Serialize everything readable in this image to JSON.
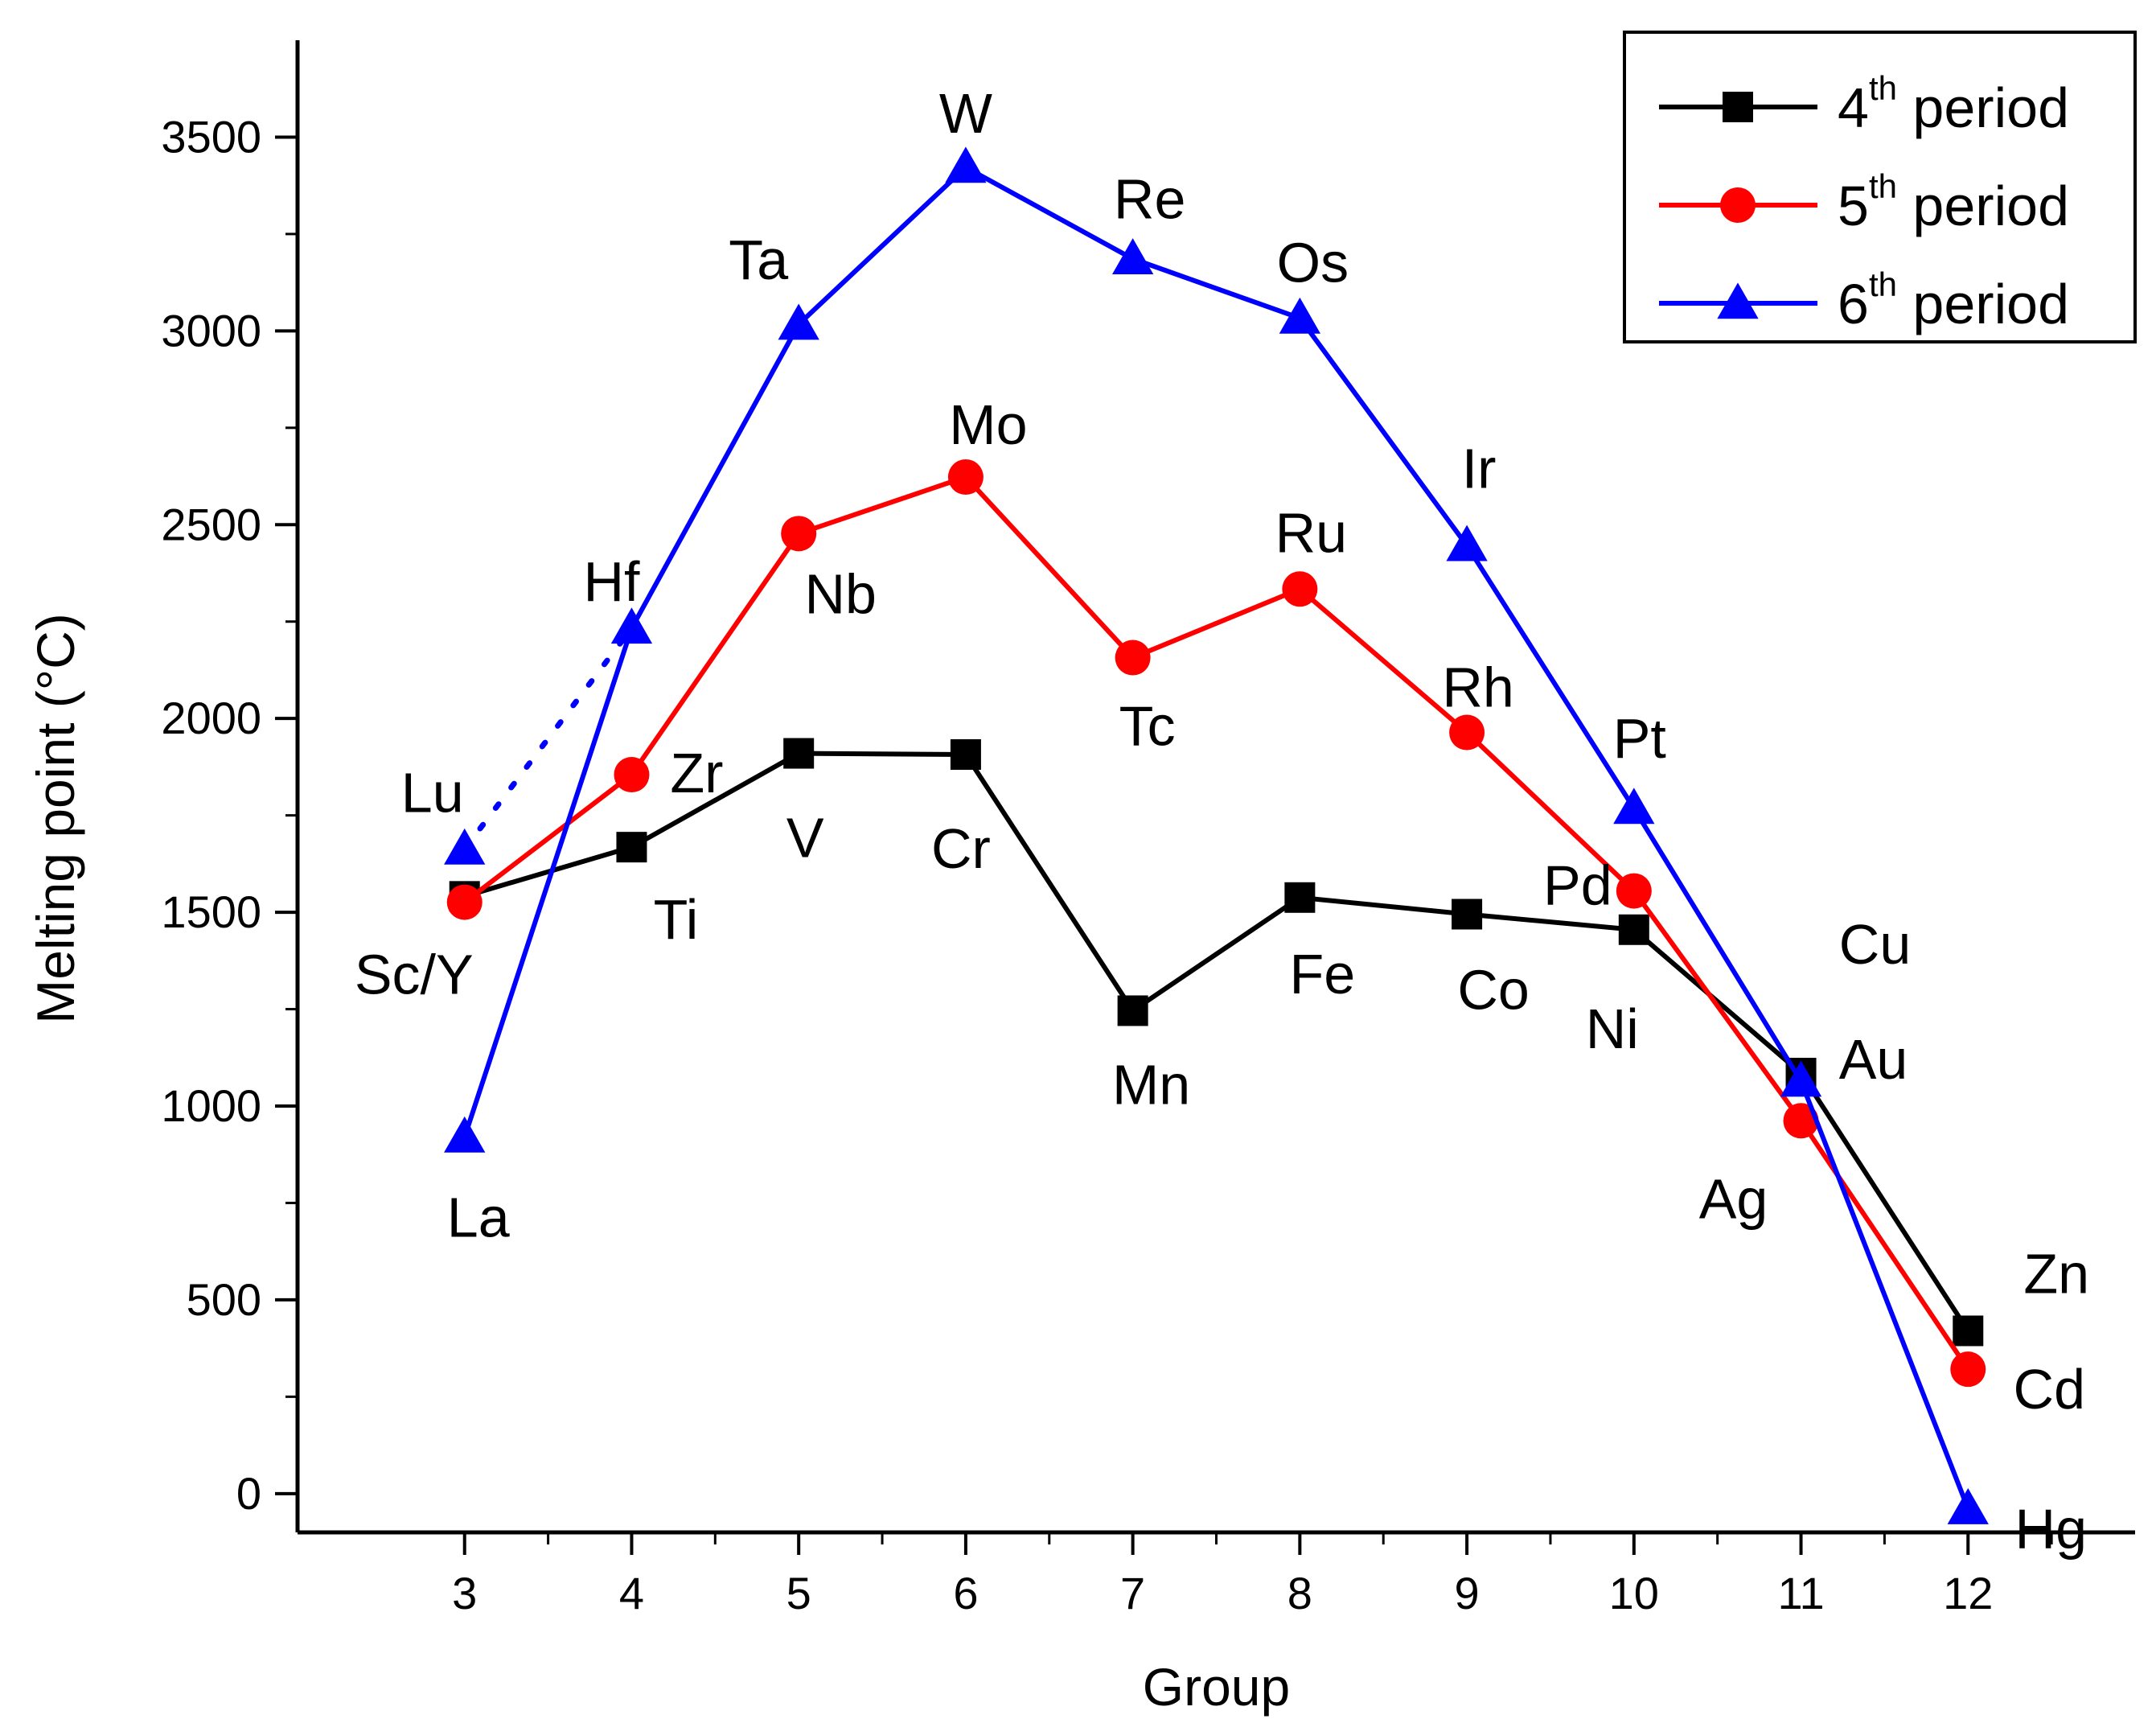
{
  "chart_data": {
    "type": "line",
    "title": "",
    "xlabel": "Group",
    "ylabel": "Melting point (°C)",
    "xlim": [
      2,
      13
    ],
    "ylim": [
      -100,
      3750
    ],
    "x_ticks": [
      3,
      4,
      5,
      6,
      7,
      8,
      9,
      10,
      11,
      12
    ],
    "y_ticks": [
      0,
      500,
      1000,
      1500,
      2000,
      2500,
      3000,
      3500
    ],
    "grid": false,
    "legend_position": "top-right",
    "series": [
      {
        "name": "4th period",
        "legend_base": "4",
        "legend_sup": "th",
        "legend_rest": " period",
        "color": "#000000",
        "marker": "square",
        "x": [
          3,
          4,
          5,
          6,
          7,
          8,
          9,
          10,
          11,
          12
        ],
        "y": [
          1541,
          1668,
          1910,
          1907,
          1246,
          1538,
          1495,
          1455,
          1085,
          420
        ],
        "elements": [
          "Sc/Y",
          "Ti",
          "V",
          "Cr",
          "Mn",
          "Fe",
          "Co",
          "Ni",
          "Cu",
          "Zn"
        ]
      },
      {
        "name": "5th period",
        "legend_base": "5",
        "legend_sup": "th",
        "legend_rest": " period",
        "color": "#ff0000",
        "marker": "circle",
        "x": [
          3,
          4,
          5,
          6,
          7,
          8,
          9,
          10,
          11,
          12
        ],
        "y": [
          1526,
          1855,
          2477,
          2623,
          2157,
          2334,
          1964,
          1555,
          962,
          321
        ],
        "elements": [
          "Sc/Y",
          "Zr",
          "Nb",
          "Mo",
          "Tc",
          "Ru",
          "Rh",
          "Pd",
          "Ag",
          "Cd"
        ]
      },
      {
        "name": "6th period",
        "legend_base": "6",
        "legend_sup": "th",
        "legend_rest": " period",
        "color": "#0000ff",
        "marker": "triangle",
        "x": [
          3,
          4,
          5,
          6,
          7,
          8,
          9,
          10,
          11,
          12
        ],
        "y": [
          920,
          2233,
          3017,
          3422,
          3186,
          3033,
          2446,
          1768,
          1064,
          -39
        ],
        "elements": [
          "La",
          "Hf",
          "Ta",
          "W",
          "Re",
          "Os",
          "Ir",
          "Pt",
          "Au",
          "Hg"
        ],
        "extra_point": {
          "element": "Lu",
          "x": 3,
          "y": 1663
        },
        "dotted_link": {
          "from": [
            3,
            1663
          ],
          "to": [
            4,
            2233
          ]
        }
      }
    ],
    "annotations": [
      {
        "text": "Lu",
        "x": 3,
        "y": 1663
      },
      {
        "text": "Sc/Y",
        "x": 3,
        "y": 1526
      },
      {
        "text": "La",
        "x": 3,
        "y": 920
      },
      {
        "text": "Hf",
        "x": 4,
        "y": 2233
      },
      {
        "text": "Zr",
        "x": 4,
        "y": 1855
      },
      {
        "text": "Ti",
        "x": 4,
        "y": 1668
      },
      {
        "text": "Ta",
        "x": 5,
        "y": 3017
      },
      {
        "text": "Nb",
        "x": 5,
        "y": 2477
      },
      {
        "text": "V",
        "x": 5,
        "y": 1910
      },
      {
        "text": "W",
        "x": 6,
        "y": 3422
      },
      {
        "text": "Mo",
        "x": 6,
        "y": 2623
      },
      {
        "text": "Cr",
        "x": 6,
        "y": 1907
      },
      {
        "text": "Re",
        "x": 7,
        "y": 3186
      },
      {
        "text": "Tc",
        "x": 7,
        "y": 2157
      },
      {
        "text": "Mn",
        "x": 7,
        "y": 1246
      },
      {
        "text": "Os",
        "x": 8,
        "y": 3033
      },
      {
        "text": "Ru",
        "x": 8,
        "y": 2334
      },
      {
        "text": "Fe",
        "x": 8,
        "y": 1538
      },
      {
        "text": "Ir",
        "x": 9,
        "y": 2446
      },
      {
        "text": "Rh",
        "x": 9,
        "y": 1964
      },
      {
        "text": "Co",
        "x": 9,
        "y": 1495
      },
      {
        "text": "Pt",
        "x": 10,
        "y": 1768
      },
      {
        "text": "Pd",
        "x": 10,
        "y": 1555
      },
      {
        "text": "Ni",
        "x": 10,
        "y": 1455
      },
      {
        "text": "Cu",
        "x": 11,
        "y": 1085
      },
      {
        "text": "Au",
        "x": 11,
        "y": 1064
      },
      {
        "text": "Ag",
        "x": 11,
        "y": 962
      },
      {
        "text": "Zn",
        "x": 12,
        "y": 420
      },
      {
        "text": "Cd",
        "x": 12,
        "y": 321
      },
      {
        "text": "Hg",
        "x": 12,
        "y": -39
      }
    ]
  }
}
